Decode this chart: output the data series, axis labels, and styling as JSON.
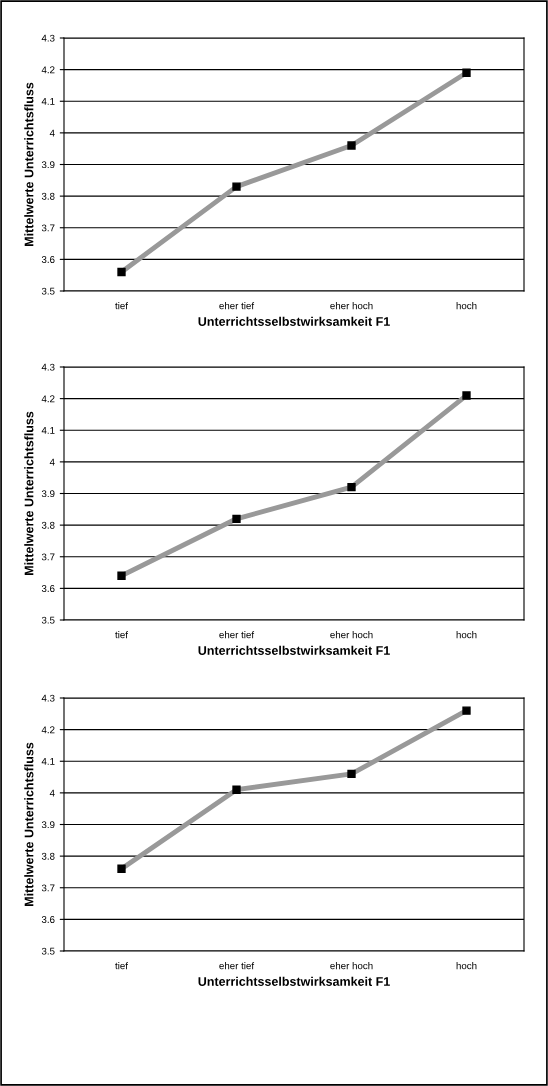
{
  "chart_data": [
    {
      "type": "line",
      "categories": [
        "tief",
        "eher tief",
        "eher hoch",
        "hoch"
      ],
      "xlabel": "Unterrichtsselbstwirksamkeit F1",
      "ylabel": "Mittelwerte Unterrichtsfluss",
      "ylim": [
        3.5,
        4.3
      ],
      "yticks": [
        3.5,
        3.6,
        3.7,
        3.8,
        3.9,
        4,
        4.1,
        4.2,
        4.3
      ],
      "grid": "y",
      "marker": "square",
      "legend": false,
      "series": [
        {
          "color": "#999999",
          "values": [
            3.56,
            3.83,
            3.96,
            4.19
          ]
        }
      ]
    },
    {
      "type": "line",
      "categories": [
        "tief",
        "eher tief",
        "eher hoch",
        "hoch"
      ],
      "xlabel": "Unterrichtsselbstwirksamkeit F1",
      "ylabel": "Mittelwerte Unterrichtsfluss",
      "ylim": [
        3.5,
        4.3
      ],
      "yticks": [
        3.5,
        3.6,
        3.7,
        3.8,
        3.9,
        4,
        4.1,
        4.2,
        4.3
      ],
      "grid": "y",
      "marker": "square",
      "legend": false,
      "series": [
        {
          "color": "#999999",
          "values": [
            3.64,
            3.82,
            3.92,
            4.21
          ]
        }
      ]
    },
    {
      "type": "line",
      "categories": [
        "tief",
        "eher tief",
        "eher hoch",
        "hoch"
      ],
      "xlabel": "Unterrichtsselbstwirksamkeit F1",
      "ylabel": "Mittelwerte Unterrichtsfluss",
      "ylim": [
        3.5,
        4.3
      ],
      "yticks": [
        3.5,
        3.6,
        3.7,
        3.8,
        3.9,
        4,
        4.1,
        4.2,
        4.3
      ],
      "grid": "y",
      "marker": "square",
      "legend": false,
      "series": [
        {
          "color": "#999999",
          "values": [
            3.76,
            4.01,
            4.06,
            4.26
          ]
        }
      ]
    }
  ]
}
